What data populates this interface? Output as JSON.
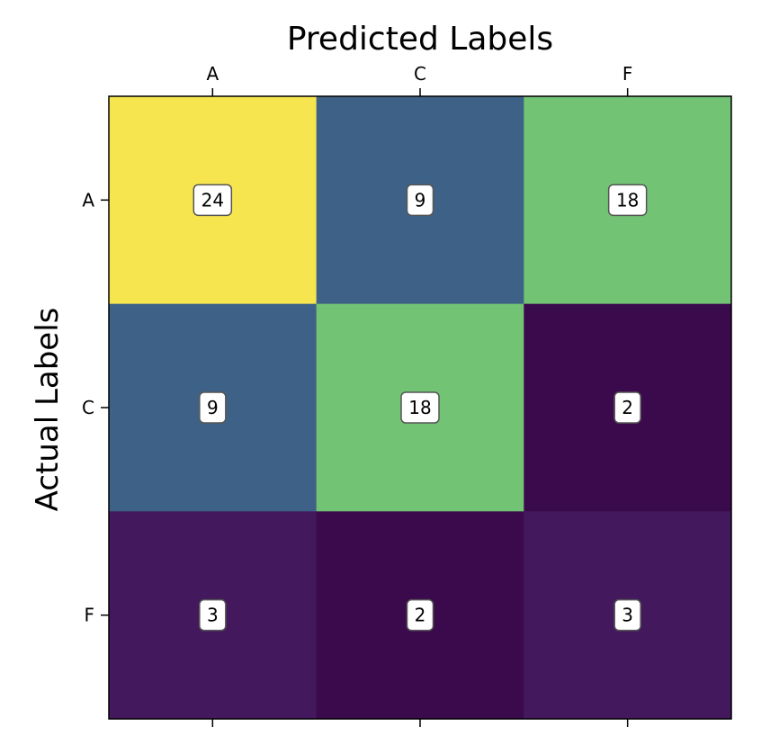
{
  "chart_data": {
    "type": "heatmap",
    "x_title": "Predicted Labels",
    "y_title": "Actual Labels",
    "x_categories": [
      "A",
      "C",
      "F"
    ],
    "y_categories": [
      "A",
      "C",
      "F"
    ],
    "values": [
      [
        24,
        9,
        18
      ],
      [
        9,
        18,
        2
      ],
      [
        3,
        2,
        3
      ]
    ],
    "colormap": "viridis",
    "value_range": [
      2,
      24
    ],
    "x_axis_position": "top",
    "grid": false,
    "legend": "none",
    "cell_colors": [
      [
        "#f6e54f",
        "#3e6287",
        "#73c374"
      ],
      [
        "#3e6287",
        "#73c374",
        "#3b0a4d"
      ],
      [
        "#43185c",
        "#3b0a4d",
        "#43185c"
      ]
    ]
  }
}
